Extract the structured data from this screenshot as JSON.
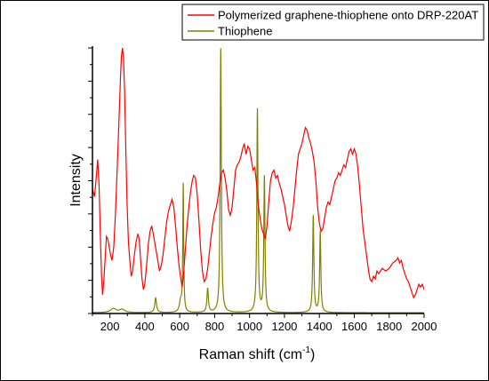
{
  "chart_data": {
    "type": "line",
    "xlabel": "Raman shift (cm",
    "xlabel_sup": "-1",
    "xlabel_tail": ")",
    "ylabel": "Intensity",
    "xlim": [
      100,
      2000
    ],
    "ylim": [
      0,
      100
    ],
    "x_ticks": [
      200,
      400,
      600,
      800,
      1000,
      1200,
      1400,
      1600,
      1800,
      2000
    ],
    "y_tick_labels_shown": false,
    "grid": false,
    "legend_position": "top-right",
    "series": [
      {
        "name": "Polymerized graphene-thiophene onto DRP-220AT",
        "color": "#ff0000",
        "points": [
          [
            100,
            47
          ],
          [
            112,
            44
          ],
          [
            120,
            50
          ],
          [
            130,
            58
          ],
          [
            138,
            48
          ],
          [
            145,
            30
          ],
          [
            152,
            14
          ],
          [
            158,
            7
          ],
          [
            165,
            12
          ],
          [
            172,
            20
          ],
          [
            180,
            29
          ],
          [
            188,
            28
          ],
          [
            196,
            25
          ],
          [
            204,
            22
          ],
          [
            212,
            20
          ],
          [
            222,
            25
          ],
          [
            232,
            38
          ],
          [
            242,
            55
          ],
          [
            252,
            73
          ],
          [
            260,
            88
          ],
          [
            266,
            97
          ],
          [
            272,
            100
          ],
          [
            278,
            96
          ],
          [
            284,
            84
          ],
          [
            290,
            65
          ],
          [
            298,
            42
          ],
          [
            306,
            27
          ],
          [
            314,
            20
          ],
          [
            322,
            14
          ],
          [
            330,
            16
          ],
          [
            340,
            22
          ],
          [
            350,
            27
          ],
          [
            360,
            30
          ],
          [
            368,
            28
          ],
          [
            376,
            20
          ],
          [
            384,
            13
          ],
          [
            392,
            9
          ],
          [
            400,
            11
          ],
          [
            410,
            18
          ],
          [
            420,
            26
          ],
          [
            430,
            31
          ],
          [
            440,
            33
          ],
          [
            448,
            30
          ],
          [
            456,
            27
          ],
          [
            464,
            24
          ],
          [
            474,
            20
          ],
          [
            484,
            16
          ],
          [
            494,
            18
          ],
          [
            504,
            22
          ],
          [
            514,
            28
          ],
          [
            524,
            34
          ],
          [
            534,
            38
          ],
          [
            546,
            41
          ],
          [
            556,
            43
          ],
          [
            566,
            40
          ],
          [
            576,
            33
          ],
          [
            586,
            25
          ],
          [
            596,
            18
          ],
          [
            606,
            13
          ],
          [
            614,
            10
          ],
          [
            622,
            15
          ],
          [
            632,
            24
          ],
          [
            642,
            33
          ],
          [
            652,
            40
          ],
          [
            662,
            46
          ],
          [
            672,
            50
          ],
          [
            680,
            52
          ],
          [
            690,
            51
          ],
          [
            700,
            45
          ],
          [
            710,
            35
          ],
          [
            720,
            24
          ],
          [
            730,
            16
          ],
          [
            740,
            12
          ],
          [
            750,
            13
          ],
          [
            760,
            17
          ],
          [
            770,
            23
          ],
          [
            780,
            29
          ],
          [
            790,
            34
          ],
          [
            800,
            38
          ],
          [
            810,
            40
          ],
          [
            820,
            44
          ],
          [
            830,
            49
          ],
          [
            840,
            53
          ],
          [
            850,
            54
          ],
          [
            860,
            51
          ],
          [
            870,
            46
          ],
          [
            880,
            39
          ],
          [
            890,
            37
          ],
          [
            900,
            40
          ],
          [
            910,
            47
          ],
          [
            920,
            54
          ],
          [
            930,
            56
          ],
          [
            940,
            57
          ],
          [
            950,
            59
          ],
          [
            960,
            62
          ],
          [
            970,
            64
          ],
          [
            980,
            60
          ],
          [
            990,
            63
          ],
          [
            1000,
            62
          ],
          [
            1010,
            58
          ],
          [
            1020,
            54
          ],
          [
            1030,
            55
          ],
          [
            1040,
            49
          ],
          [
            1050,
            41
          ],
          [
            1060,
            36
          ],
          [
            1070,
            32
          ],
          [
            1080,
            30
          ],
          [
            1090,
            28
          ],
          [
            1100,
            33
          ],
          [
            1110,
            42
          ],
          [
            1120,
            50
          ],
          [
            1130,
            53
          ],
          [
            1140,
            54
          ],
          [
            1150,
            51
          ],
          [
            1160,
            52
          ],
          [
            1170,
            49
          ],
          [
            1180,
            47
          ],
          [
            1190,
            44
          ],
          [
            1200,
            41
          ],
          [
            1210,
            37
          ],
          [
            1220,
            33
          ],
          [
            1230,
            31
          ],
          [
            1240,
            35
          ],
          [
            1250,
            40
          ],
          [
            1260,
            47
          ],
          [
            1270,
            54
          ],
          [
            1280,
            60
          ],
          [
            1290,
            62
          ],
          [
            1300,
            64
          ],
          [
            1310,
            67
          ],
          [
            1320,
            70
          ],
          [
            1330,
            69
          ],
          [
            1340,
            66
          ],
          [
            1350,
            64
          ],
          [
            1360,
            61
          ],
          [
            1370,
            57
          ],
          [
            1380,
            50
          ],
          [
            1390,
            40
          ],
          [
            1400,
            34
          ],
          [
            1410,
            31
          ],
          [
            1420,
            32
          ],
          [
            1430,
            36
          ],
          [
            1440,
            40
          ],
          [
            1450,
            42
          ],
          [
            1460,
            41
          ],
          [
            1470,
            44
          ],
          [
            1480,
            47
          ],
          [
            1490,
            50
          ],
          [
            1500,
            51
          ],
          [
            1510,
            53
          ],
          [
            1520,
            52
          ],
          [
            1530,
            54
          ],
          [
            1540,
            56
          ],
          [
            1550,
            55
          ],
          [
            1560,
            58
          ],
          [
            1570,
            61
          ],
          [
            1580,
            62
          ],
          [
            1590,
            60
          ],
          [
            1600,
            62
          ],
          [
            1610,
            60
          ],
          [
            1620,
            55
          ],
          [
            1630,
            48
          ],
          [
            1640,
            40
          ],
          [
            1650,
            32
          ],
          [
            1660,
            27
          ],
          [
            1670,
            22
          ],
          [
            1680,
            17
          ],
          [
            1690,
            13
          ],
          [
            1700,
            12
          ],
          [
            1710,
            14
          ],
          [
            1720,
            13
          ],
          [
            1730,
            16
          ],
          [
            1740,
            15
          ],
          [
            1760,
            17
          ],
          [
            1780,
            16
          ],
          [
            1800,
            17
          ],
          [
            1820,
            19
          ],
          [
            1840,
            20
          ],
          [
            1850,
            21
          ],
          [
            1860,
            19
          ],
          [
            1870,
            20
          ],
          [
            1880,
            17
          ],
          [
            1890,
            15
          ],
          [
            1900,
            13
          ],
          [
            1910,
            12
          ],
          [
            1920,
            10
          ],
          [
            1930,
            8
          ],
          [
            1940,
            6
          ],
          [
            1950,
            7
          ],
          [
            1960,
            9
          ],
          [
            1970,
            11
          ],
          [
            1980,
            10
          ],
          [
            1990,
            11
          ],
          [
            2000,
            9
          ]
        ]
      },
      {
        "name": "Thiophene",
        "color": "#808000",
        "baseline": 0.3,
        "peaks": [
          [
            220,
            1.5,
            20
          ],
          [
            270,
            1.2,
            18
          ],
          [
            462,
            5.5,
            6
          ],
          [
            605,
            4,
            8
          ],
          [
            620,
            48,
            3
          ],
          [
            760,
            9,
            5
          ],
          [
            835,
            99.5,
            4
          ],
          [
            1045,
            76.5,
            4
          ],
          [
            1085,
            51,
            4
          ],
          [
            1365,
            36.5,
            4
          ],
          [
            1405,
            30.5,
            4
          ]
        ]
      }
    ]
  }
}
